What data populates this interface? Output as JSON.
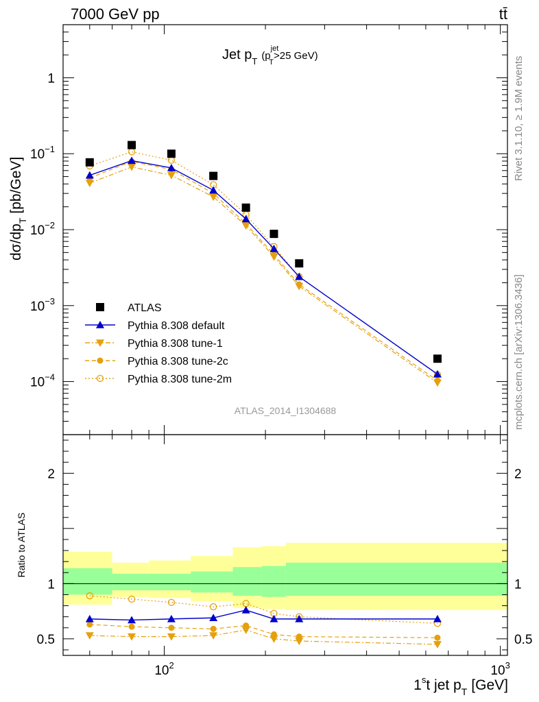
{
  "header": {
    "beam": "7000 GeV pp",
    "process": "tt̄"
  },
  "side_labels": {
    "rivet": "Rivet 3.1.10, ≥ 1.9M events",
    "mcplots": "mcplots.cern.ch [arXiv:1306.3436]"
  },
  "analysis_id": "ATLAS_2014_I1304688",
  "colors": {
    "data": "#000000",
    "default": "#0000cc",
    "tune": "#e5a00d",
    "band_inner": "#99ff99",
    "band_outer": "#ffff99"
  },
  "chart_data": [
    {
      "type": "scatter",
      "panel": "main",
      "title": "Jet p_T (p_T^jet>25 GeV)",
      "title_main": "Jet p",
      "title_sub": "T",
      "title_paren_open": "(p",
      "title_paren_sup": "jet",
      "title_paren_sub": "T",
      "title_paren_rest": ">25 GeV)",
      "ylabel": "dσ/dp_T [pb/GeV]",
      "ylabel_main": "dσ/dp",
      "ylabel_sub": "T",
      "ylabel_unit": "[pb/GeV]",
      "xscale": "log",
      "yscale": "log",
      "xlim": [
        50,
        1050
      ],
      "ylim": [
        2e-05,
        5
      ],
      "legend_position": "bottom-left",
      "ytick_labels": [
        {
          "v": 1,
          "base": "1",
          "exp": ""
        },
        {
          "v": 0.1,
          "base": "10",
          "exp": "−1"
        },
        {
          "v": 0.01,
          "base": "10",
          "exp": "−2"
        },
        {
          "v": 0.001,
          "base": "10",
          "exp": "−3"
        },
        {
          "v": 0.0001,
          "base": "10",
          "exp": "−4"
        }
      ],
      "x": [
        60,
        80,
        105,
        140,
        175,
        212,
        252,
        650
      ],
      "series": [
        {
          "name": "ATLAS",
          "key": "data",
          "marker": "square",
          "values": [
            0.077,
            0.13,
            0.1,
            0.051,
            0.0195,
            0.0088,
            0.0036,
            0.0002
          ]
        },
        {
          "name": "Pythia 8.308 default",
          "key": "default",
          "marker": "triangle-up",
          "line": "solid",
          "values": [
            0.052,
            0.081,
            0.065,
            0.033,
            0.0138,
            0.0056,
            0.0024,
            0.000125
          ]
        },
        {
          "name": "Pythia 8.308 tune-1",
          "key": "tune",
          "marker": "triangle-down",
          "line": "dashdot",
          "values": [
            0.041,
            0.067,
            0.052,
            0.027,
            0.0113,
            0.0044,
            0.0018,
            9.65e-05
          ]
        },
        {
          "name": "Pythia 8.308 tune-2c",
          "key": "tune",
          "marker": "circle",
          "line": "dashed",
          "values": [
            0.048,
            0.079,
            0.062,
            0.03,
            0.012,
            0.0047,
            0.0019,
            0.000103
          ]
        },
        {
          "name": "Pythia 8.308 tune-2m",
          "key": "tune",
          "marker": "circle-open",
          "line": "dotted",
          "values": [
            0.069,
            0.106,
            0.082,
            0.039,
            0.0158,
            0.006,
            0.0024,
            0.000124
          ]
        }
      ]
    },
    {
      "type": "scatter",
      "panel": "ratio",
      "ylabel": "Ratio to ATLAS",
      "xlabel": "1st jet p_T [GeV]",
      "xlabel_main": "1",
      "xlabel_sup": "s",
      "xlabel_mid": "t jet p",
      "xlabel_sub": "T",
      "xlabel_unit": "[GeV]",
      "xscale": "log",
      "xlim": [
        50,
        1050
      ],
      "ylim": [
        0.35,
        2.35
      ],
      "yticks": [
        0.5,
        1,
        2
      ],
      "ytick_labels": [
        "0.5",
        "1",
        "2"
      ],
      "xtick_labels": [
        {
          "v": 100,
          "base": "10",
          "exp": "2"
        },
        {
          "v": 1000,
          "base": "10",
          "exp": "3"
        }
      ],
      "x": [
        60,
        80,
        105,
        140,
        175,
        212,
        252,
        650
      ],
      "bands": [
        {
          "x0": 50,
          "x1": 70,
          "outer": [
            0.81,
            1.29
          ],
          "inner": [
            0.9,
            1.14
          ]
        },
        {
          "x0": 70,
          "x1": 90,
          "outer": [
            0.88,
            1.19
          ],
          "inner": [
            0.94,
            1.09
          ]
        },
        {
          "x0": 90,
          "x1": 120,
          "outer": [
            0.87,
            1.21
          ],
          "inner": [
            0.94,
            1.09
          ]
        },
        {
          "x0": 120,
          "x1": 160,
          "outer": [
            0.84,
            1.25
          ],
          "inner": [
            0.92,
            1.11
          ]
        },
        {
          "x0": 160,
          "x1": 195,
          "outer": [
            0.78,
            1.33
          ],
          "inner": [
            0.89,
            1.15
          ]
        },
        {
          "x0": 195,
          "x1": 230,
          "outer": [
            0.77,
            1.34
          ],
          "inner": [
            0.88,
            1.16
          ]
        },
        {
          "x0": 230,
          "x1": 1050,
          "outer": [
            0.76,
            1.37
          ],
          "inner": [
            0.89,
            1.19
          ]
        }
      ],
      "series": [
        {
          "name": "Pythia 8.308 default",
          "key": "default",
          "marker": "triangle-up",
          "line": "solid",
          "values": [
            0.68,
            0.67,
            0.68,
            0.69,
            0.76,
            0.68,
            0.68,
            0.68
          ]
        },
        {
          "name": "Pythia 8.308 tune-1",
          "key": "tune",
          "marker": "triangle-down",
          "line": "dashdot",
          "values": [
            0.53,
            0.52,
            0.52,
            0.53,
            0.58,
            0.5,
            0.48,
            0.45
          ]
        },
        {
          "name": "Pythia 8.308 tune-2c",
          "key": "tune",
          "marker": "circle",
          "line": "dashed",
          "values": [
            0.63,
            0.61,
            0.6,
            0.59,
            0.62,
            0.54,
            0.52,
            0.51
          ]
        },
        {
          "name": "Pythia 8.308 tune-2m",
          "key": "tune",
          "marker": "circle-open",
          "line": "dotted",
          "values": [
            0.89,
            0.86,
            0.83,
            0.79,
            0.82,
            0.73,
            0.7,
            0.64
          ]
        }
      ]
    }
  ]
}
